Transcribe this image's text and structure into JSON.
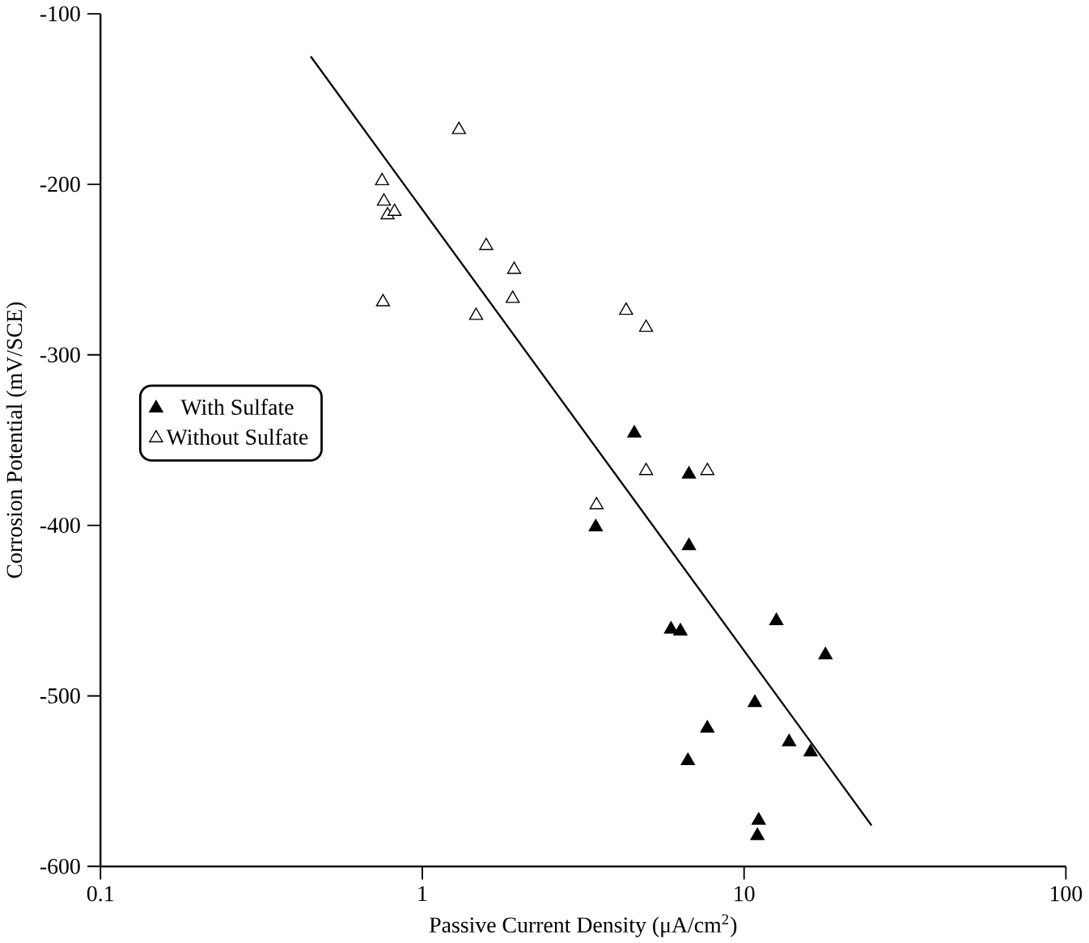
{
  "chart_data": {
    "type": "scatter",
    "xlabel": "Passive Current Density (μA/cm$^{2}$)",
    "ylabel": "Corrosion Potential (mV/SCE)",
    "log": "x",
    "xlim": [
      0.1,
      100
    ],
    "ylim": [
      -600,
      -100
    ],
    "xticks": [
      0.1,
      1,
      10,
      100
    ],
    "yticks": [
      -600,
      -500,
      -400,
      -300,
      -200,
      -100
    ],
    "grid": false,
    "legend": "left",
    "marker": "triangle",
    "series": [
      {
        "name": "With Sulfate",
        "color": "#000000",
        "x": [
          4.56,
          6.74,
          3.46,
          6.74,
          5.93,
          6.34,
          12.6,
          17.9,
          10.8,
          7.69,
          13.8,
          16.1,
          6.69,
          11.1,
          11.0
        ],
        "values": [
          -346,
          -370,
          -401,
          -412,
          -461,
          -462,
          -456,
          -476,
          -504,
          -519,
          -527,
          -533,
          -538,
          -573,
          -582
        ]
      },
      {
        "name": "Without Sulfate",
        "color": "#ffffff",
        "x": [
          1.3,
          0.75,
          0.76,
          0.78,
          0.82,
          1.58,
          1.93,
          1.91,
          1.47,
          0.755,
          4.3,
          4.96,
          4.96,
          7.69,
          3.48
        ],
        "values": [
          -168,
          -198,
          -210,
          -218,
          -216,
          -236,
          -250,
          -267,
          -277,
          -269,
          -274,
          -284,
          -368,
          -368,
          -388
        ]
      },
      {
        "type": "line",
        "color": "#000000",
        "marker": "none",
        "x": [
          0.45,
          24.9
        ],
        "values": [
          -125,
          -576
        ]
      }
    ]
  }
}
